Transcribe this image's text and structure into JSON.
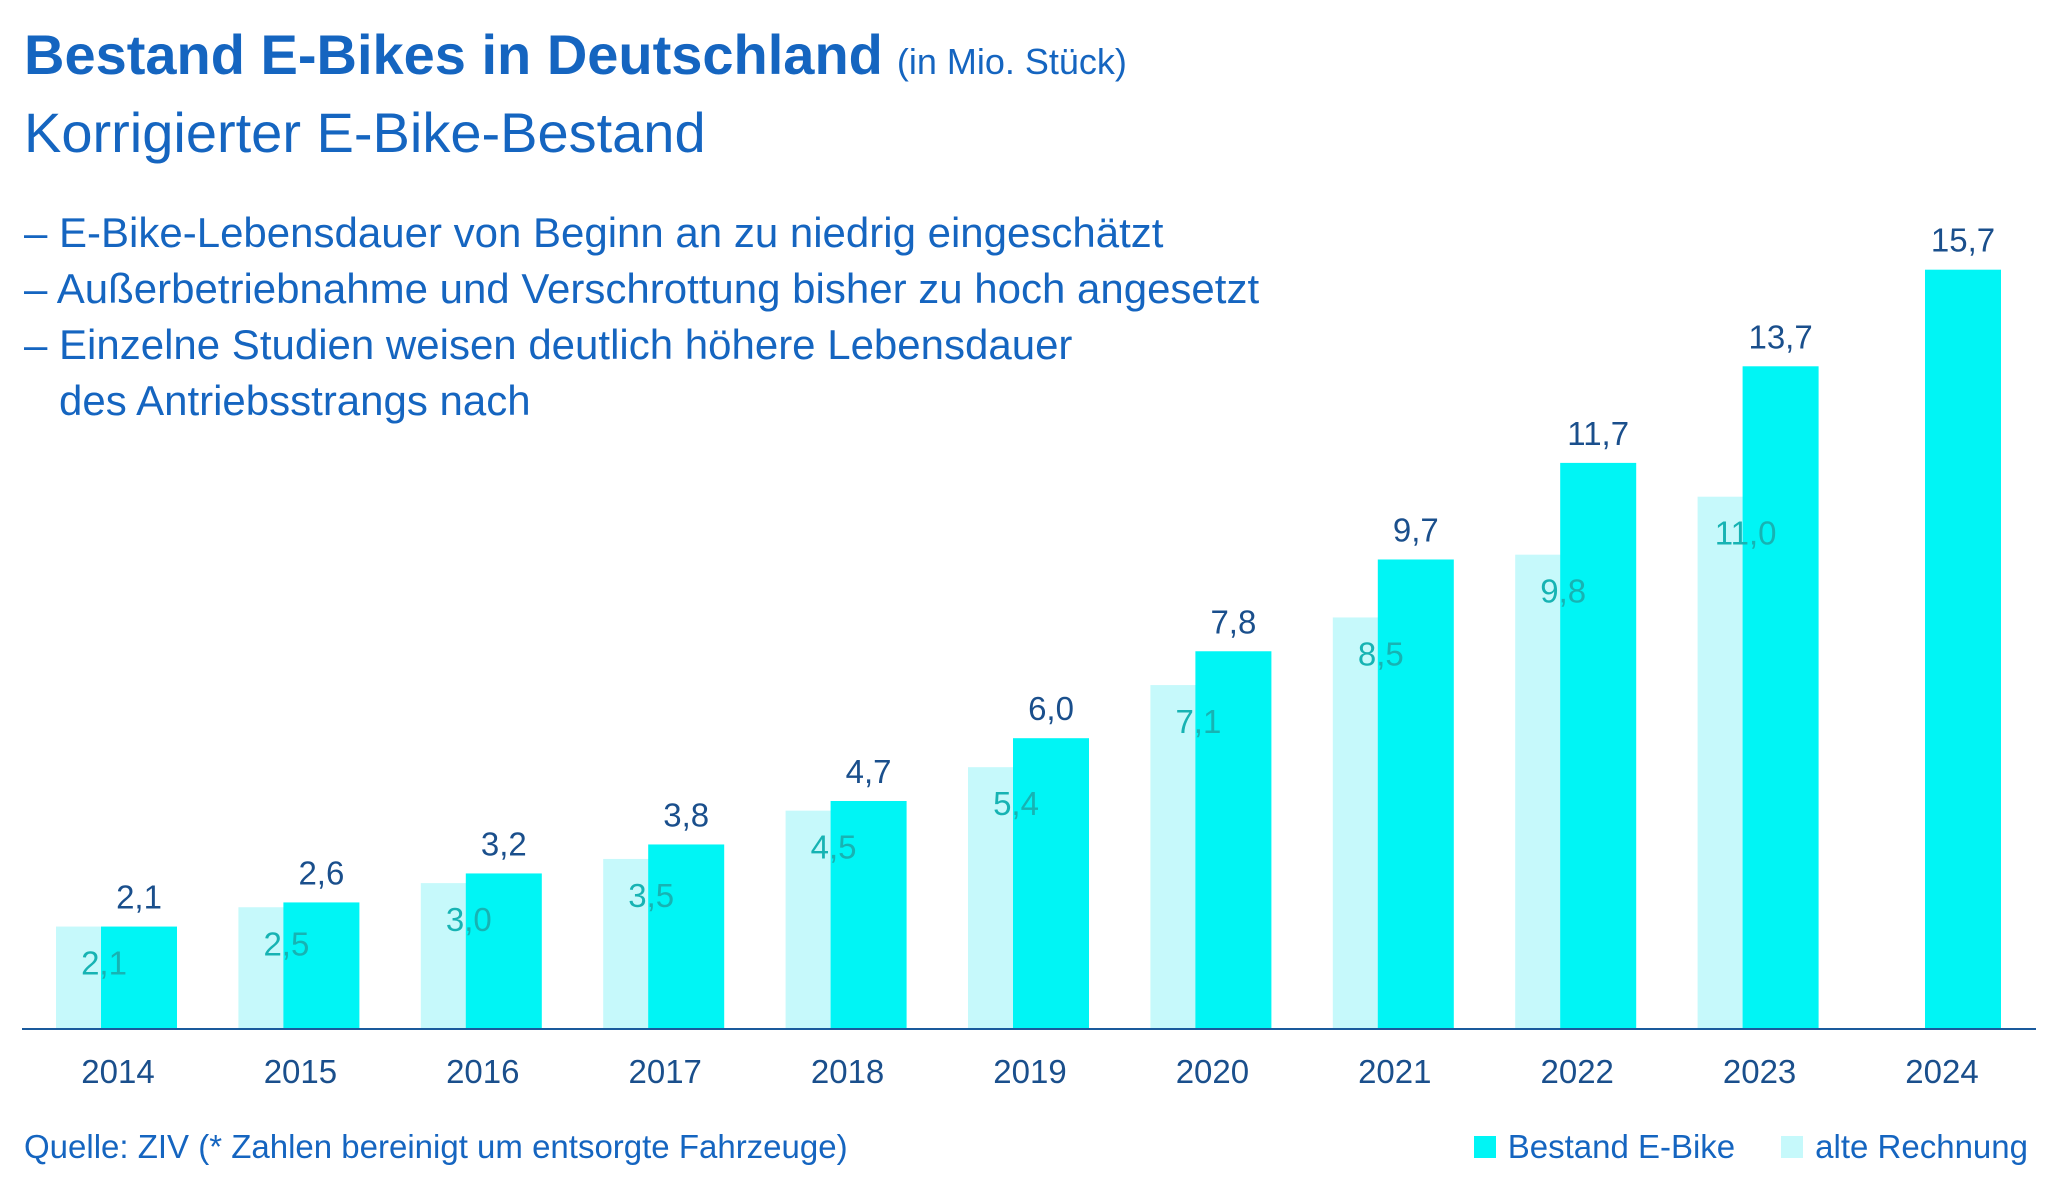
{
  "title": "Bestand E-Bikes in Deutschland",
  "title_unit": "(in Mio. Stück)",
  "subtitle": "Korrigierter E-Bike-Bestand",
  "bullets": [
    "– E-Bike-Lebensdauer von Beginn an zu niedrig eingeschätzt",
    "– Außerbetriebnahme und Verschrottung bisher zu hoch angesetzt",
    "– Einzelne Studien weisen deutlich höhere Lebensdauer",
    "   des Antriebsstrangs nach"
  ],
  "source": "Quelle: ZIV (* Zahlen bereinigt um entsorgte Fahrzeuge)",
  "colors": {
    "bestand": "#00f5f5",
    "alt": "#c6f9fb",
    "label_new": "#1a4f8c",
    "label_old": "#17b3b3",
    "axis": "#1a5a9c",
    "text": "#1565c0"
  },
  "chart_data": {
    "type": "bar",
    "categories": [
      "2014",
      "2015",
      "2016",
      "2017",
      "2018",
      "2019",
      "2020",
      "2021",
      "2022",
      "2023",
      "2024"
    ],
    "series": [
      {
        "name": "Bestand E-Bike",
        "values": [
          2.1,
          2.6,
          3.2,
          3.8,
          4.7,
          6.0,
          7.8,
          9.7,
          11.7,
          13.7,
          15.7
        ],
        "labels": [
          "2,1",
          "2,6",
          "3,2",
          "3,8",
          "4,7",
          "6,0",
          "7,8",
          "9,7",
          "11,7",
          "13,7",
          "15,7"
        ]
      },
      {
        "name": "alte Rechnung",
        "values": [
          2.1,
          2.5,
          3.0,
          3.5,
          4.5,
          5.4,
          7.1,
          8.5,
          9.8,
          11.0,
          null
        ],
        "labels": [
          "2,1",
          "2,5",
          "3,0",
          "3,5",
          "4,5",
          "5,4",
          "7,1",
          "8,5",
          "9,8",
          "11,0",
          ""
        ]
      }
    ],
    "ylim": [
      0,
      16
    ],
    "grid": false,
    "legend_position": "bottom-right"
  }
}
